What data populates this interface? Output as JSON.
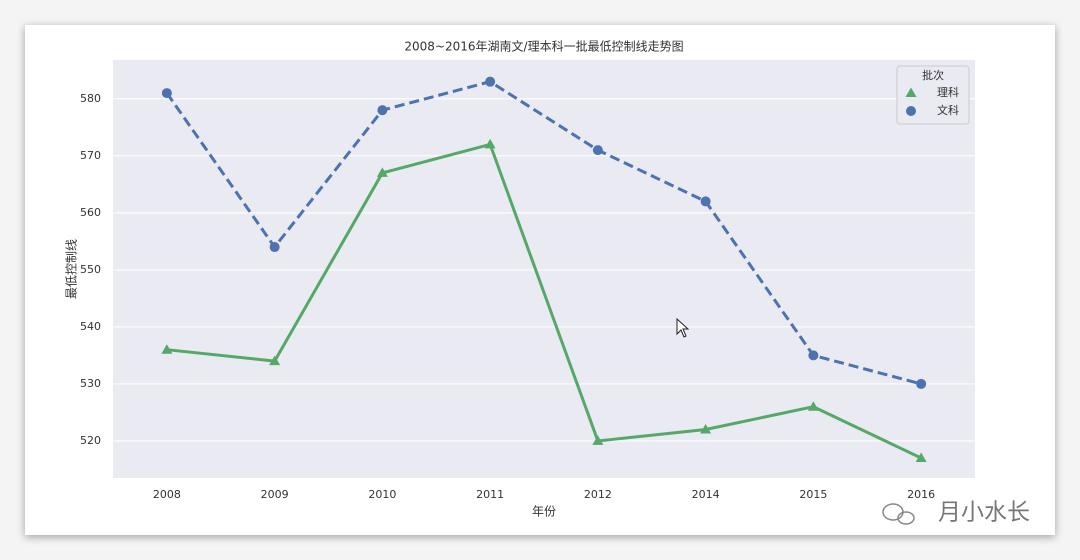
{
  "chart_data": {
    "type": "line",
    "title": "2008~2016年湖南文/理本科一批最低控制线走势图",
    "xlabel": "年份",
    "ylabel": "最低控制线",
    "categories": [
      "2008",
      "2009",
      "2010",
      "2011",
      "2012",
      "2014",
      "2015",
      "2016"
    ],
    "series": [
      {
        "name": "理科",
        "color": "#55a868",
        "marker": "triangle",
        "linestyle": "solid",
        "values": [
          536,
          534,
          567,
          572,
          520,
          522,
          526,
          517
        ]
      },
      {
        "name": "文科",
        "color": "#4c72b0",
        "marker": "circle",
        "linestyle": "dashed",
        "values": [
          581,
          554,
          578,
          583,
          571,
          562,
          535,
          530
        ]
      }
    ],
    "legend_title": "批次",
    "legend_loc": "upper right",
    "ylim": [
      513.5,
      586.8
    ],
    "yticks": [
      520,
      530,
      540,
      550,
      560,
      570,
      580
    ],
    "grid": true,
    "watermark": "月小水长"
  }
}
